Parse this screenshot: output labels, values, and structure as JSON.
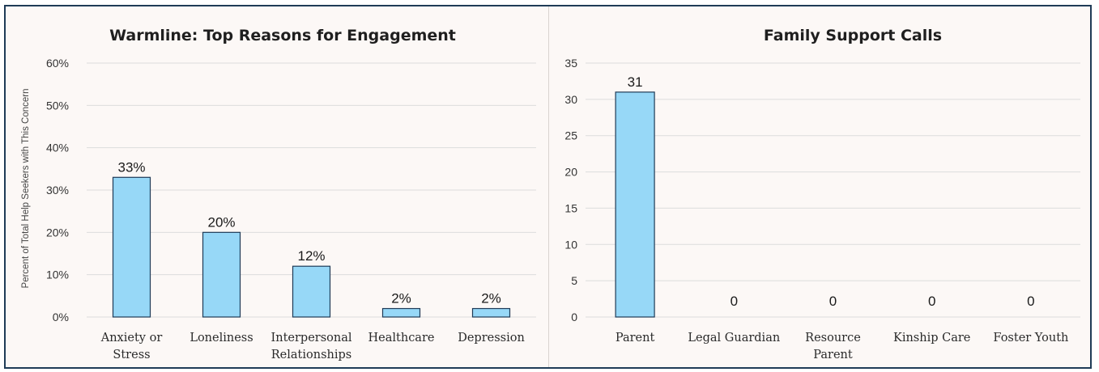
{
  "chart_data": [
    {
      "type": "bar",
      "title": "Warmline: Top Reasons for Engagement",
      "ylabel": "Percent of Total Help Seekers with This Concern",
      "xlabel": "",
      "categories": [
        "Anxiety or Stress",
        "Loneliness",
        "Interpersonal Relationships",
        "Healthcare",
        "Depression"
      ],
      "category_lines": [
        [
          "Anxiety or",
          "Stress"
        ],
        [
          "Loneliness"
        ],
        [
          "Interpersonal",
          "Relationships"
        ],
        [
          "Healthcare"
        ],
        [
          "Depression"
        ]
      ],
      "values": [
        33,
        20,
        12,
        2,
        2
      ],
      "data_labels": [
        "33%",
        "20%",
        "12%",
        "2%",
        "2%"
      ],
      "ylim": [
        0,
        60
      ],
      "y_ticks": [
        0,
        10,
        20,
        30,
        40,
        50,
        60
      ],
      "y_tick_labels": [
        "0%",
        "10%",
        "20%",
        "30%",
        "40%",
        "50%",
        "60%"
      ],
      "grid": true,
      "bar_color": "#97d8f7",
      "bar_edge_color": "#1f3b57"
    },
    {
      "type": "bar",
      "title": "Family Support Calls",
      "ylabel": "",
      "xlabel": "",
      "categories": [
        "Parent",
        "Legal Guardian",
        "Resource Parent",
        "Kinship Care",
        "Foster Youth"
      ],
      "category_lines": [
        [
          "Parent"
        ],
        [
          "Legal Guardian"
        ],
        [
          "Resource",
          "Parent"
        ],
        [
          "Kinship Care"
        ],
        [
          "Foster Youth"
        ]
      ],
      "values": [
        31,
        0,
        0,
        0,
        0
      ],
      "data_labels": [
        "31",
        "0",
        "0",
        "0",
        "0"
      ],
      "ylim": [
        0,
        35
      ],
      "y_ticks": [
        0,
        5,
        10,
        15,
        20,
        25,
        30,
        35
      ],
      "y_tick_labels": [
        "0",
        "5",
        "10",
        "15",
        "20",
        "25",
        "30",
        "35"
      ],
      "grid": true,
      "bar_color": "#97d8f7",
      "bar_edge_color": "#1f3b57"
    }
  ]
}
